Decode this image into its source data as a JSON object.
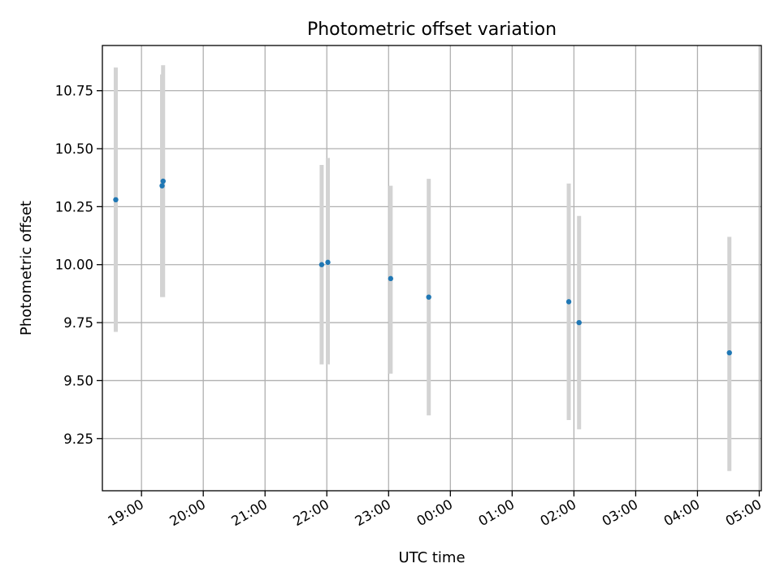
{
  "chart_data": {
    "type": "scatter",
    "title": "Photometric offset variation",
    "xlabel": "UTC time",
    "ylabel": "Photometric offset",
    "grid": true,
    "legend": "none",
    "xlim": [
      "18:22",
      "29:02"
    ],
    "ylim": [
      9.025,
      10.945
    ],
    "x_ticks": [
      "19:00",
      "20:00",
      "21:00",
      "22:00",
      "23:00",
      "00:00",
      "01:00",
      "02:00",
      "03:00",
      "04:00",
      "05:00"
    ],
    "y_ticks": [
      "9.25",
      "9.50",
      "9.75",
      "10.00",
      "10.25",
      "10.50",
      "10.75"
    ],
    "point_color": "#1f77b4",
    "errorbar_color": "#d3d3d3",
    "points": [
      {
        "time": "18:35",
        "y": 10.28,
        "ylow": 9.71,
        "yhigh": 10.85
      },
      {
        "time": "19:20",
        "y": 10.34,
        "ylow": 9.86,
        "yhigh": 10.82
      },
      {
        "time": "19:21",
        "y": 10.36,
        "ylow": 9.86,
        "yhigh": 10.86
      },
      {
        "time": "21:55",
        "y": 10.0,
        "ylow": 9.57,
        "yhigh": 10.43
      },
      {
        "time": "22:01",
        "y": 10.01,
        "ylow": 9.57,
        "yhigh": 10.46
      },
      {
        "time": "23:02",
        "y": 9.94,
        "ylow": 9.53,
        "yhigh": 10.34
      },
      {
        "time": "23:39",
        "y": 9.86,
        "ylow": 9.35,
        "yhigh": 10.37
      },
      {
        "time": "01:55",
        "y": 9.84,
        "ylow": 9.33,
        "yhigh": 10.35
      },
      {
        "time": "02:05",
        "y": 9.75,
        "ylow": 9.29,
        "yhigh": 10.21
      },
      {
        "time": "04:31",
        "y": 9.62,
        "ylow": 9.11,
        "yhigh": 10.12
      }
    ]
  }
}
